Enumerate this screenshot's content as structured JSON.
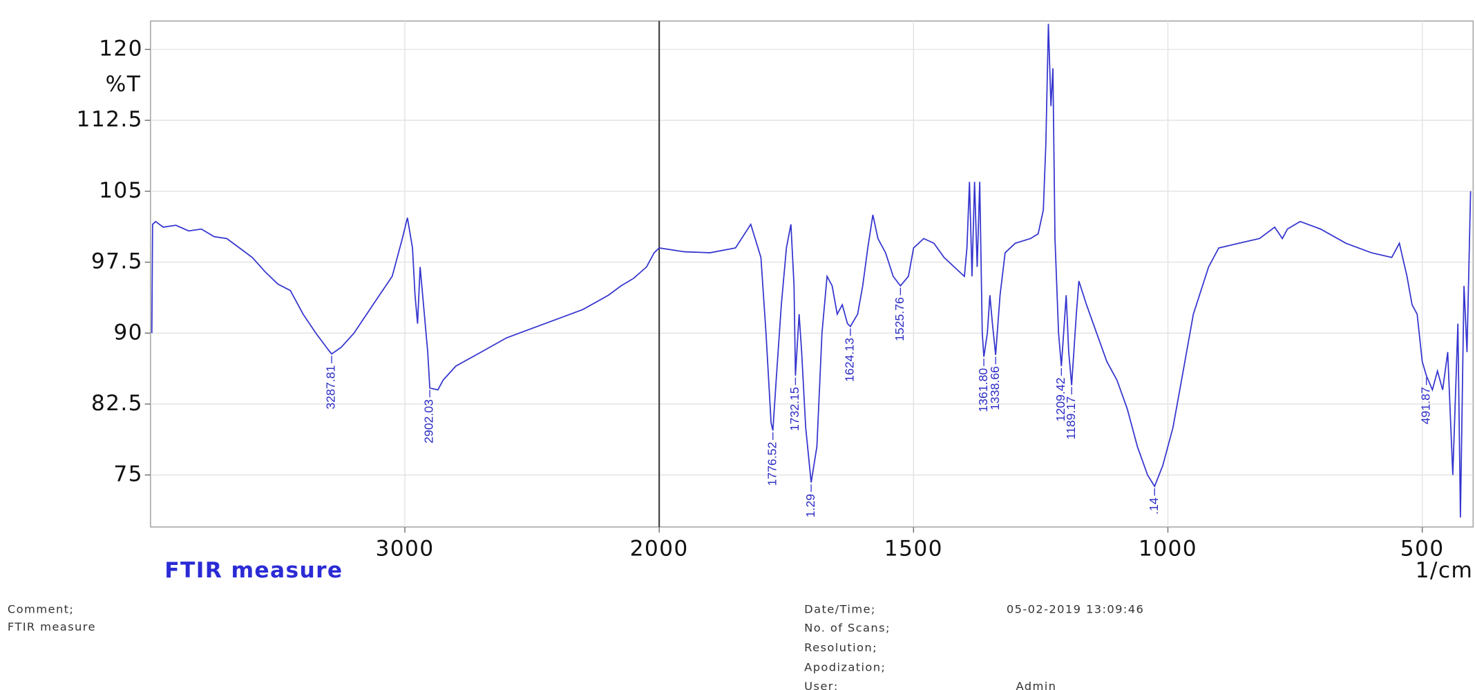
{
  "chart_data": {
    "type": "line",
    "title": "FTIR measure",
    "ylabel": "%T",
    "xlabel": "1/cm",
    "color": "#3535cf",
    "xlim": [
      4000,
      400
    ],
    "xbreak": 2000,
    "ylim": [
      69.5,
      123
    ],
    "xticks": [
      3000,
      2000,
      1500,
      1000,
      500
    ],
    "yticks": [
      120,
      112.5,
      105,
      97.5,
      90,
      82.5,
      75
    ],
    "grid": true,
    "x": [
      3995,
      3992,
      3980,
      3950,
      3900,
      3850,
      3800,
      3750,
      3700,
      3650,
      3600,
      3550,
      3500,
      3450,
      3400,
      3350,
      3300,
      3287.81,
      3250,
      3200,
      3150,
      3100,
      3050,
      3010,
      2990,
      2970,
      2960,
      2950,
      2940,
      2930,
      2910,
      2902.03,
      2870,
      2850,
      2800,
      2700,
      2600,
      2500,
      2400,
      2300,
      2200,
      2150,
      2100,
      2050,
      2020,
      2000,
      1950,
      1900,
      1850,
      1820,
      1800,
      1790,
      1780,
      1776.52,
      1770,
      1760,
      1750,
      1741,
      1735,
      1732.15,
      1725,
      1720,
      1712,
      1701.29,
      1690,
      1680,
      1670,
      1660,
      1650,
      1640,
      1630,
      1624.13,
      1610,
      1600,
      1590,
      1580,
      1570,
      1555,
      1540,
      1525.76,
      1510,
      1500,
      1480,
      1460,
      1440,
      1420,
      1400,
      1395,
      1390,
      1385,
      1380,
      1375,
      1370,
      1365,
      1361.8,
      1355,
      1350,
      1345,
      1338.66,
      1330,
      1320,
      1300,
      1270,
      1255,
      1245,
      1240,
      1235,
      1230,
      1226,
      1222,
      1215,
      1209.42,
      1205,
      1200,
      1195,
      1189.17,
      1180,
      1175,
      1160,
      1140,
      1120,
      1100,
      1080,
      1060,
      1040,
      1026.14,
      1010,
      990,
      970,
      950,
      920,
      900,
      860,
      820,
      790,
      775,
      765,
      740,
      700,
      650,
      600,
      560,
      545,
      530,
      520,
      510,
      500,
      491.87,
      480,
      470,
      460,
      450,
      440,
      430,
      425,
      418,
      412,
      405
    ],
    "values": [
      90,
      101.5,
      101.8,
      101.2,
      101.4,
      100.8,
      101,
      100.2,
      100,
      99,
      98,
      96.5,
      95.2,
      94.5,
      92,
      90,
      88.2,
      87.8,
      88.5,
      90,
      92,
      94,
      96,
      100,
      102.2,
      99,
      94,
      91,
      97,
      94,
      88,
      84.2,
      84,
      85,
      86.5,
      88,
      89.5,
      90.5,
      91.5,
      92.5,
      94,
      95,
      95.8,
      97,
      98.5,
      99,
      98.6,
      98.5,
      99,
      101.5,
      98,
      90,
      80.5,
      79.7,
      85,
      93,
      99,
      101.5,
      95,
      85.5,
      92,
      88,
      80,
      74.2,
      78,
      90,
      96,
      95,
      92,
      93,
      91,
      90.7,
      92,
      95,
      99,
      102.5,
      100,
      98.5,
      96,
      95,
      96,
      99,
      100,
      99.5,
      98,
      97,
      96,
      99,
      106,
      96,
      106,
      97,
      106,
      90,
      87.5,
      90,
      94,
      91,
      87.7,
      94,
      98.5,
      99.5,
      100,
      100.5,
      103,
      110,
      122.7,
      114,
      118,
      100,
      90,
      86.5,
      90,
      94,
      88,
      84.5,
      92,
      95.5,
      93,
      90,
      87,
      85,
      82,
      78,
      75,
      73.8,
      76,
      80,
      86,
      92,
      97,
      99,
      99.5,
      100,
      101.2,
      100,
      101,
      101.8,
      101,
      99.5,
      98.5,
      98,
      99.5,
      96,
      93,
      92,
      87,
      85.5,
      84,
      86,
      84,
      88,
      75,
      91,
      70.5,
      95,
      88,
      105
    ],
    "annotations": [
      {
        "x": 3287.81,
        "y": 87.8,
        "label": "3287.81"
      },
      {
        "x": 2902.03,
        "y": 84.2,
        "label": "2902.03"
      },
      {
        "x": 1776.52,
        "y": 79.7,
        "label": "1776.52"
      },
      {
        "x": 1732.15,
        "y": 85.5,
        "label": "1732.15"
      },
      {
        "x": 1701.29,
        "y": 74.2,
        "label": "1.29"
      },
      {
        "x": 1624.13,
        "y": 90.7,
        "label": "1624.13"
      },
      {
        "x": 1525.76,
        "y": 95,
        "label": "1525.76"
      },
      {
        "x": 1361.8,
        "y": 87.5,
        "label": "1361.80"
      },
      {
        "x": 1338.66,
        "y": 87.7,
        "label": "1338.66"
      },
      {
        "x": 1209.42,
        "y": 86.5,
        "label": "1209.42"
      },
      {
        "x": 1189.17,
        "y": 84.5,
        "label": "1189.17"
      },
      {
        "x": 1026.14,
        "y": 73.8,
        "label": ".14"
      },
      {
        "x": 491.87,
        "y": 85.5,
        "label": "491.87"
      }
    ]
  },
  "info": {
    "comment_label": "Comment;",
    "comment": "FTIR measure",
    "date_label": "Date/Time;",
    "date": "05-02-2019 13:09:46",
    "scans_label": "No. of Scans;",
    "resolution_label": "Resolution;",
    "apodization_label": "Apodization;",
    "user_label": "User;",
    "user": "Admin"
  }
}
